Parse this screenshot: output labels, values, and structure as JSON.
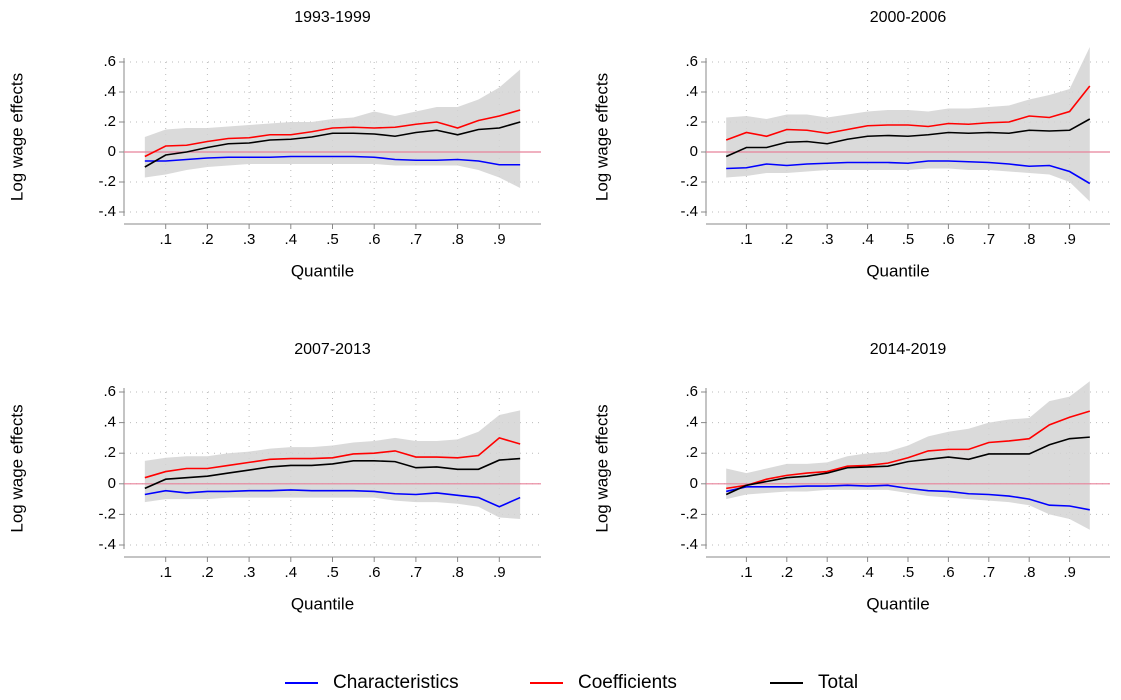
{
  "chart_data": [
    {
      "type": "line",
      "title": "1993-1999",
      "xlabel": "Quantile",
      "ylabel": "Log wage effects",
      "x": [
        0.05,
        0.1,
        0.15,
        0.2,
        0.25,
        0.3,
        0.35,
        0.4,
        0.45,
        0.5,
        0.55,
        0.6,
        0.65,
        0.7,
        0.75,
        0.8,
        0.85,
        0.9,
        0.95
      ],
      "series": [
        {
          "name": "Characteristics",
          "color": "#0000ff",
          "values": [
            -0.06,
            -0.06,
            -0.05,
            -0.04,
            -0.035,
            -0.035,
            -0.035,
            -0.03,
            -0.03,
            -0.03,
            -0.03,
            -0.035,
            -0.05,
            -0.055,
            -0.055,
            -0.05,
            -0.06,
            -0.085,
            -0.085
          ]
        },
        {
          "name": "Coefficients",
          "color": "#ff0000",
          "values": [
            -0.03,
            0.04,
            0.045,
            0.07,
            0.09,
            0.095,
            0.115,
            0.115,
            0.135,
            0.16,
            0.165,
            0.16,
            0.165,
            0.185,
            0.2,
            0.16,
            0.21,
            0.24,
            0.28
          ]
        },
        {
          "name": "Total",
          "color": "#000000",
          "values": [
            -0.1,
            -0.02,
            0.0,
            0.03,
            0.055,
            0.06,
            0.08,
            0.085,
            0.1,
            0.125,
            0.125,
            0.12,
            0.105,
            0.13,
            0.145,
            0.115,
            0.15,
            0.16,
            0.2
          ]
        }
      ],
      "band": {
        "color": "#d3d3d3",
        "upper": [
          0.1,
          0.15,
          0.16,
          0.16,
          0.17,
          0.18,
          0.19,
          0.2,
          0.2,
          0.22,
          0.23,
          0.27,
          0.24,
          0.27,
          0.3,
          0.3,
          0.35,
          0.43,
          0.55
        ],
        "lower": [
          -0.17,
          -0.15,
          -0.12,
          -0.1,
          -0.09,
          -0.08,
          -0.08,
          -0.08,
          -0.08,
          -0.08,
          -0.08,
          -0.08,
          -0.09,
          -0.09,
          -0.09,
          -0.09,
          -0.12,
          -0.17,
          -0.24
        ]
      },
      "refline": {
        "value": 0,
        "color": "#e8829a"
      },
      "xlim": [
        0,
        1
      ],
      "ylim": [
        -0.4,
        0.6
      ],
      "xticks": [
        {
          "value": 0.1,
          "label": ".1"
        },
        {
          "value": 0.2,
          "label": ".2"
        },
        {
          "value": 0.3,
          "label": ".3"
        },
        {
          "value": 0.4,
          "label": ".4"
        },
        {
          "value": 0.5,
          "label": ".5"
        },
        {
          "value": 0.6,
          "label": ".6"
        },
        {
          "value": 0.7,
          "label": ".7"
        },
        {
          "value": 0.8,
          "label": ".8"
        },
        {
          "value": 0.9,
          "label": ".9"
        }
      ],
      "yticks": [
        {
          "value": -0.4,
          "label": "-.4"
        },
        {
          "value": -0.2,
          "label": "-.2"
        },
        0,
        {
          "value": 0.2,
          "label": ".2"
        },
        {
          "value": 0.4,
          "label": ".4"
        },
        {
          "value": 0.6,
          "label": ".6"
        }
      ],
      "grid": true,
      "legend": "bottom"
    },
    {
      "type": "line",
      "title": "2000-2006",
      "xlabel": "Quantile",
      "ylabel": "Log wage effects",
      "x": [
        0.05,
        0.1,
        0.15,
        0.2,
        0.25,
        0.3,
        0.35,
        0.4,
        0.45,
        0.5,
        0.55,
        0.6,
        0.65,
        0.7,
        0.75,
        0.8,
        0.85,
        0.9,
        0.95
      ],
      "series": [
        {
          "name": "Characteristics",
          "color": "#0000ff",
          "values": [
            -0.11,
            -0.105,
            -0.08,
            -0.09,
            -0.08,
            -0.075,
            -0.07,
            -0.07,
            -0.07,
            -0.075,
            -0.06,
            -0.06,
            -0.065,
            -0.07,
            -0.08,
            -0.095,
            -0.09,
            -0.13,
            -0.21
          ]
        },
        {
          "name": "Coefficients",
          "color": "#ff0000",
          "values": [
            0.08,
            0.13,
            0.105,
            0.15,
            0.145,
            0.125,
            0.15,
            0.175,
            0.18,
            0.18,
            0.17,
            0.19,
            0.185,
            0.195,
            0.2,
            0.24,
            0.23,
            0.27,
            0.44
          ]
        },
        {
          "name": "Total",
          "color": "#000000",
          "values": [
            -0.03,
            0.03,
            0.03,
            0.065,
            0.07,
            0.055,
            0.085,
            0.105,
            0.11,
            0.105,
            0.115,
            0.13,
            0.125,
            0.13,
            0.125,
            0.145,
            0.14,
            0.145,
            0.22
          ]
        }
      ],
      "band": {
        "color": "#d3d3d3",
        "upper": [
          0.23,
          0.24,
          0.22,
          0.25,
          0.25,
          0.23,
          0.25,
          0.27,
          0.28,
          0.28,
          0.27,
          0.29,
          0.29,
          0.3,
          0.31,
          0.35,
          0.38,
          0.42,
          0.7
        ],
        "lower": [
          -0.17,
          -0.16,
          -0.14,
          -0.14,
          -0.13,
          -0.12,
          -0.12,
          -0.12,
          -0.12,
          -0.12,
          -0.11,
          -0.11,
          -0.12,
          -0.12,
          -0.13,
          -0.14,
          -0.15,
          -0.2,
          -0.33
        ]
      },
      "refline": {
        "value": 0,
        "color": "#e8829a"
      },
      "xlim": [
        0,
        1
      ],
      "ylim": [
        -0.4,
        0.6
      ],
      "xticks": [
        {
          "value": 0.1,
          "label": ".1"
        },
        {
          "value": 0.2,
          "label": ".2"
        },
        {
          "value": 0.3,
          "label": ".3"
        },
        {
          "value": 0.4,
          "label": ".4"
        },
        {
          "value": 0.5,
          "label": ".5"
        },
        {
          "value": 0.6,
          "label": ".6"
        },
        {
          "value": 0.7,
          "label": ".7"
        },
        {
          "value": 0.8,
          "label": ".8"
        },
        {
          "value": 0.9,
          "label": ".9"
        }
      ],
      "yticks": [
        {
          "value": -0.4,
          "label": "-.4"
        },
        {
          "value": -0.2,
          "label": "-.2"
        },
        0,
        {
          "value": 0.2,
          "label": ".2"
        },
        {
          "value": 0.4,
          "label": ".4"
        },
        {
          "value": 0.6,
          "label": ".6"
        }
      ],
      "grid": true
    },
    {
      "type": "line",
      "title": "2007-2013",
      "xlabel": "Quantile",
      "ylabel": "Log wage effects",
      "x": [
        0.05,
        0.1,
        0.15,
        0.2,
        0.25,
        0.3,
        0.35,
        0.4,
        0.45,
        0.5,
        0.55,
        0.6,
        0.65,
        0.7,
        0.75,
        0.8,
        0.85,
        0.9,
        0.95
      ],
      "series": [
        {
          "name": "Characteristics",
          "color": "#0000ff",
          "values": [
            -0.07,
            -0.045,
            -0.06,
            -0.05,
            -0.05,
            -0.045,
            -0.045,
            -0.04,
            -0.045,
            -0.045,
            -0.045,
            -0.05,
            -0.065,
            -0.07,
            -0.06,
            -0.075,
            -0.09,
            -0.15,
            -0.09
          ]
        },
        {
          "name": "Coefficients",
          "color": "#ff0000",
          "values": [
            0.04,
            0.08,
            0.1,
            0.1,
            0.12,
            0.14,
            0.16,
            0.165,
            0.165,
            0.17,
            0.195,
            0.2,
            0.215,
            0.175,
            0.175,
            0.17,
            0.185,
            0.3,
            0.26
          ]
        },
        {
          "name": "Total",
          "color": "#000000",
          "values": [
            -0.03,
            0.03,
            0.04,
            0.05,
            0.07,
            0.09,
            0.11,
            0.12,
            0.12,
            0.13,
            0.15,
            0.15,
            0.145,
            0.105,
            0.11,
            0.095,
            0.095,
            0.155,
            0.165
          ]
        }
      ],
      "band": {
        "color": "#d3d3d3",
        "upper": [
          0.15,
          0.17,
          0.18,
          0.18,
          0.2,
          0.21,
          0.23,
          0.24,
          0.24,
          0.25,
          0.27,
          0.28,
          0.3,
          0.28,
          0.28,
          0.29,
          0.34,
          0.45,
          0.48
        ],
        "lower": [
          -0.12,
          -0.1,
          -0.1,
          -0.1,
          -0.09,
          -0.09,
          -0.09,
          -0.09,
          -0.09,
          -0.09,
          -0.09,
          -0.09,
          -0.11,
          -0.12,
          -0.12,
          -0.13,
          -0.15,
          -0.22,
          -0.23
        ]
      },
      "refline": {
        "value": 0,
        "color": "#e8829a"
      },
      "xlim": [
        0,
        1
      ],
      "ylim": [
        -0.4,
        0.6
      ],
      "xticks": [
        {
          "value": 0.1,
          "label": ".1"
        },
        {
          "value": 0.2,
          "label": ".2"
        },
        {
          "value": 0.3,
          "label": ".3"
        },
        {
          "value": 0.4,
          "label": ".4"
        },
        {
          "value": 0.5,
          "label": ".5"
        },
        {
          "value": 0.6,
          "label": ".6"
        },
        {
          "value": 0.7,
          "label": ".7"
        },
        {
          "value": 0.8,
          "label": ".8"
        },
        {
          "value": 0.9,
          "label": ".9"
        }
      ],
      "yticks": [
        {
          "value": -0.4,
          "label": "-.4"
        },
        {
          "value": -0.2,
          "label": "-.2"
        },
        0,
        {
          "value": 0.2,
          "label": ".2"
        },
        {
          "value": 0.4,
          "label": ".4"
        },
        {
          "value": 0.6,
          "label": ".6"
        }
      ],
      "grid": true
    },
    {
      "type": "line",
      "title": "2014-2019",
      "xlabel": "Quantile",
      "ylabel": "Log wage effects",
      "x": [
        0.05,
        0.1,
        0.15,
        0.2,
        0.25,
        0.3,
        0.35,
        0.4,
        0.45,
        0.5,
        0.55,
        0.6,
        0.65,
        0.7,
        0.75,
        0.8,
        0.85,
        0.9,
        0.95
      ],
      "series": [
        {
          "name": "Characteristics",
          "color": "#0000ff",
          "values": [
            -0.05,
            -0.02,
            -0.02,
            -0.02,
            -0.015,
            -0.015,
            -0.01,
            -0.015,
            -0.01,
            -0.03,
            -0.045,
            -0.05,
            -0.065,
            -0.07,
            -0.08,
            -0.1,
            -0.14,
            -0.145,
            -0.17
          ]
        },
        {
          "name": "Coefficients",
          "color": "#ff0000",
          "values": [
            -0.03,
            -0.01,
            0.03,
            0.055,
            0.07,
            0.08,
            0.115,
            0.12,
            0.135,
            0.17,
            0.215,
            0.225,
            0.225,
            0.27,
            0.28,
            0.295,
            0.385,
            0.435,
            0.475
          ]
        },
        {
          "name": "Total",
          "color": "#000000",
          "values": [
            -0.07,
            -0.01,
            0.015,
            0.04,
            0.05,
            0.07,
            0.105,
            0.11,
            0.115,
            0.145,
            0.16,
            0.175,
            0.16,
            0.195,
            0.195,
            0.195,
            0.255,
            0.295,
            0.305
          ]
        }
      ],
      "band": {
        "color": "#d3d3d3",
        "upper": [
          0.1,
          0.07,
          0.1,
          0.13,
          0.13,
          0.14,
          0.18,
          0.2,
          0.21,
          0.25,
          0.31,
          0.34,
          0.36,
          0.4,
          0.42,
          0.43,
          0.54,
          0.57,
          0.67
        ],
        "lower": [
          -0.1,
          -0.07,
          -0.06,
          -0.05,
          -0.05,
          -0.04,
          -0.04,
          -0.04,
          -0.04,
          -0.06,
          -0.08,
          -0.09,
          -0.1,
          -0.11,
          -0.12,
          -0.14,
          -0.2,
          -0.23,
          -0.3
        ]
      },
      "refline": {
        "value": 0,
        "color": "#e8829a"
      },
      "xlim": [
        0,
        1
      ],
      "ylim": [
        -0.4,
        0.6
      ],
      "xticks": [
        {
          "value": 0.1,
          "label": ".1"
        },
        {
          "value": 0.2,
          "label": ".2"
        },
        {
          "value": 0.3,
          "label": ".3"
        },
        {
          "value": 0.4,
          "label": ".4"
        },
        {
          "value": 0.5,
          "label": ".5"
        },
        {
          "value": 0.6,
          "label": ".6"
        },
        {
          "value": 0.7,
          "label": ".7"
        },
        {
          "value": 0.8,
          "label": ".8"
        },
        {
          "value": 0.9,
          "label": ".9"
        }
      ],
      "yticks": [
        {
          "value": -0.4,
          "label": "-.4"
        },
        {
          "value": -0.2,
          "label": "-.2"
        },
        0,
        {
          "value": 0.2,
          "label": ".2"
        },
        {
          "value": 0.4,
          "label": ".4"
        },
        {
          "value": 0.6,
          "label": ".6"
        }
      ],
      "grid": true
    }
  ]
}
